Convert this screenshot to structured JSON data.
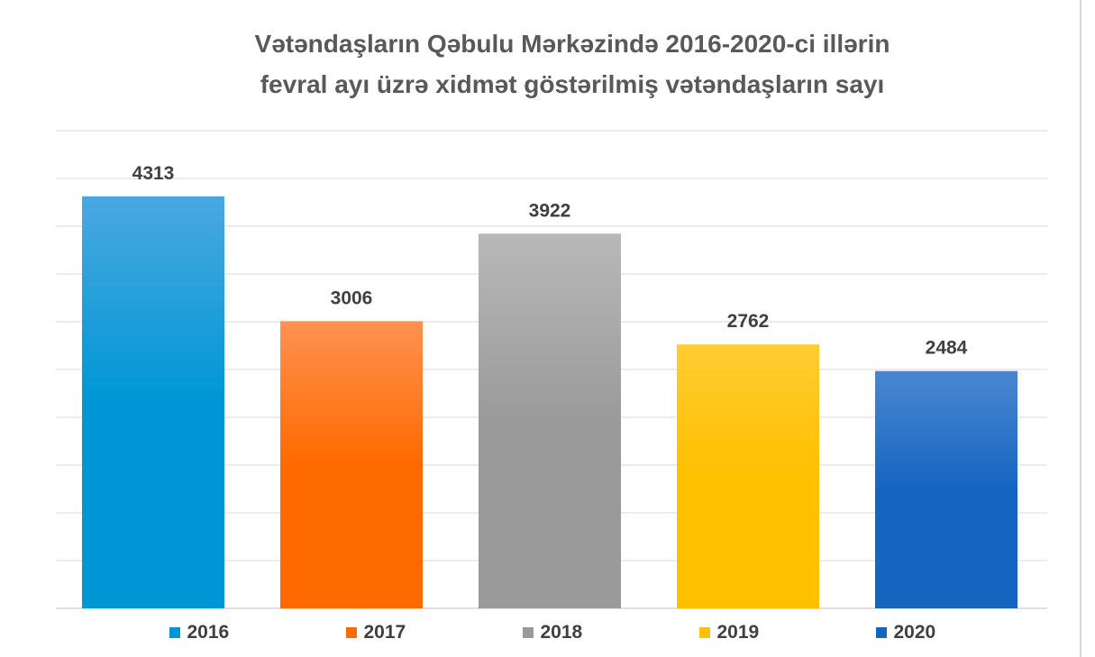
{
  "chart_data": {
    "type": "bar",
    "title_lines": [
      "Vətəndaşların Qəbulu Mərkəzində 2016-2020-ci illərin",
      "fevral ayı üzrə xidmət göstərilmiş vətəndaşların sayı"
    ],
    "categories": [
      "2016",
      "2017",
      "2018",
      "2019",
      "2020"
    ],
    "values": [
      4313,
      3006,
      3922,
      2762,
      2484
    ],
    "ylim": [
      0,
      5000
    ],
    "grid": true,
    "y_axis_labels_shown": false,
    "legend_position": "bottom",
    "colors": [
      "#0096d6",
      "#ff6a00",
      "#9a9a9a",
      "#ffc000",
      "#1565c0"
    ],
    "colors_light": [
      "#4aa8e0",
      "#ff9150",
      "#b8b8b8",
      "#ffcc33",
      "#4a86d0"
    ]
  }
}
